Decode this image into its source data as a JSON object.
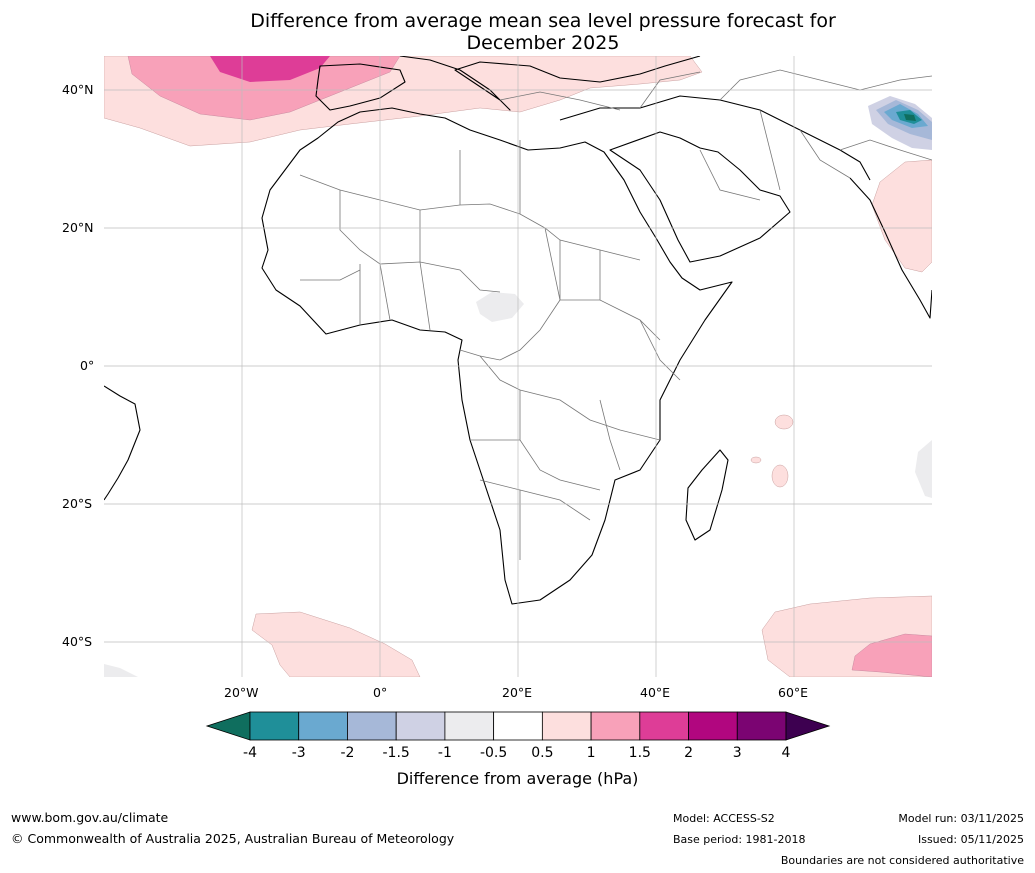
{
  "title": {
    "line1": "Difference from average mean sea level pressure forecast for",
    "line2": "December 2025"
  },
  "map": {
    "lat_labels": [
      "40°N",
      "20°N",
      "0°",
      "20°S",
      "40°S"
    ],
    "lon_labels": [
      "20°W",
      "0°",
      "20°E",
      "40°E",
      "60°E"
    ],
    "lon_range_deg": [
      -40,
      80
    ],
    "lat_range_deg": [
      -45,
      45
    ]
  },
  "colorbar": {
    "title": "Difference from average (hPa)",
    "ticks": [
      "-4",
      "-3",
      "-2",
      "-1.5",
      "-1",
      "-0.5",
      "0.5",
      "1",
      "1.5",
      "2",
      "3",
      "4"
    ],
    "colors": [
      "#0f6e5e",
      "#1f8f99",
      "#6aa9d0",
      "#a6b8d8",
      "#cfd1e4",
      "#ececee",
      "#ffffff",
      "#fddfde",
      "#f8a1b9",
      "#de3d97",
      "#b1067f",
      "#7b0472",
      "#3d0050"
    ]
  },
  "footer": {
    "website": "www.bom.gov.au/climate",
    "copyright": "© Commonwealth of Australia 2025, Australian Bureau of Meteorology",
    "model": "Model: ACCESS-S2",
    "base_period": "Base period: 1981-2018",
    "model_run": "Model run: 03/11/2025",
    "issued": "Issued: 05/11/2025",
    "disclaimer": "Boundaries are not considered authoritative"
  }
}
